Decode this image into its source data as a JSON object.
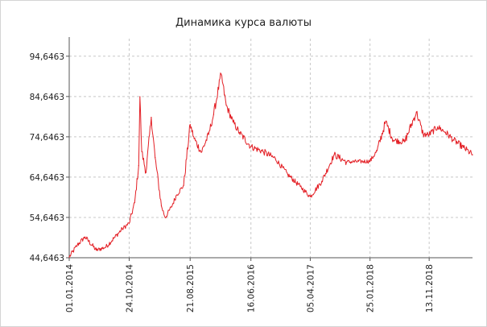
{
  "chart_data": {
    "type": "line",
    "title": "Динамика курса валюты",
    "xlabel": "",
    "ylabel": "",
    "ylim": [
      44.6463,
      99.0
    ],
    "xlim": [
      "2014-01-01",
      "2019-06-15"
    ],
    "y_ticks": [
      "44,6463",
      "54,6463",
      "64,6463",
      "74,6463",
      "84,6463",
      "94,6463"
    ],
    "y_tick_values": [
      44.6463,
      54.6463,
      64.6463,
      74.6463,
      84.6463,
      94.6463
    ],
    "x_ticks": [
      "01.01.2014",
      "24.10.2014",
      "21.08.2015",
      "16.06.2016",
      "05.04.2017",
      "25.01.2018",
      "13.11.2018"
    ],
    "x_tick_dates": [
      "2014-01-01",
      "2014-10-24",
      "2015-08-21",
      "2016-06-16",
      "2017-04-05",
      "2018-01-25",
      "2018-11-13"
    ],
    "grid": true,
    "line_color": "#e31e24",
    "series": [
      {
        "x": [
          "2014-01-01",
          "2014-02-10",
          "2014-03-20",
          "2014-05-15",
          "2014-07-01",
          "2014-08-15",
          "2014-09-20",
          "2014-10-24",
          "2014-11-20",
          "2014-12-10",
          "2014-12-16",
          "2014-12-25",
          "2015-01-15",
          "2015-02-10",
          "2015-03-01",
          "2015-04-01",
          "2015-04-20",
          "2015-05-20",
          "2015-06-15",
          "2015-07-20",
          "2015-08-21",
          "2015-09-10",
          "2015-10-15",
          "2015-11-20",
          "2015-12-15",
          "2016-01-21",
          "2016-02-15",
          "2016-03-20",
          "2016-04-20",
          "2016-06-16",
          "2016-08-15",
          "2016-10-15",
          "2016-12-15",
          "2017-02-15",
          "2017-04-05",
          "2017-06-01",
          "2017-08-01",
          "2017-10-01",
          "2018-01-25",
          "2018-03-01",
          "2018-04-12",
          "2018-05-20",
          "2018-07-15",
          "2018-09-11",
          "2018-10-15",
          "2018-11-13",
          "2018-12-25",
          "2019-02-01",
          "2019-03-15",
          "2019-05-01",
          "2019-06-15"
        ],
        "values": [
          44.8,
          47.8,
          49.8,
          46.5,
          47.3,
          49.8,
          51.8,
          53.2,
          58.3,
          67.5,
          84.6,
          71.0,
          65.8,
          79.5,
          69.5,
          57.5,
          54.6,
          57.2,
          60.2,
          62.6,
          77.7,
          74.2,
          70.8,
          75.2,
          80.2,
          90.2,
          82.5,
          78.3,
          75.7,
          72.2,
          71.0,
          69.2,
          65.3,
          62.3,
          59.8,
          63.6,
          70.2,
          68.4,
          68.6,
          71.2,
          78.4,
          73.8,
          73.4,
          80.8,
          75.2,
          75.2,
          77.1,
          75.8,
          73.8,
          72.0,
          70.2
        ]
      }
    ]
  }
}
